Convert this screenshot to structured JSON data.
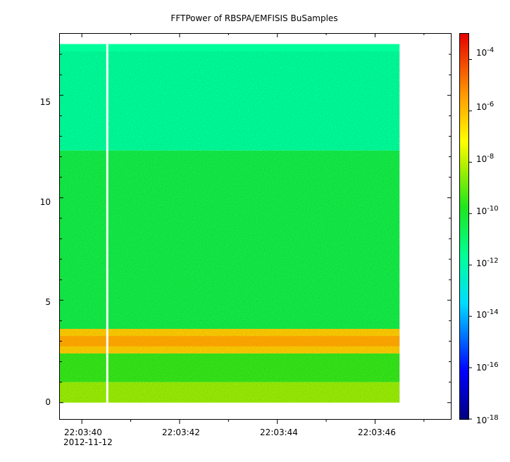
{
  "chart_data": {
    "type": "heatmap",
    "title": "FFTPower of RBSPA/EMFISIS  BuSamples",
    "xlabel": "",
    "ylabel": "",
    "x_tick_labels": [
      "22:03:40",
      "22:03:42",
      "22:03:44",
      "22:03:46"
    ],
    "x_date_label": "2012-11-12",
    "x_tick_seconds": [
      40,
      42,
      44,
      46
    ],
    "x_range_seconds": [
      39.55,
      47.55
    ],
    "data_x_range_seconds": [
      39.55,
      46.5
    ],
    "gap_x_seconds": 40.52,
    "y_ticks": [
      0,
      5,
      10,
      15
    ],
    "y_tick_labels": [
      "0",
      "5",
      "10",
      "15"
    ],
    "y_range": [
      -0.8,
      18.0
    ],
    "data_y_range": [
      0,
      17.5
    ],
    "colorbar": {
      "scale": "log",
      "range": [
        1e-18,
        0.001
      ],
      "tick_labels": [
        {
          "base": "10",
          "exp": "-4",
          "value": -4
        },
        {
          "base": "10",
          "exp": "-6",
          "value": -6
        },
        {
          "base": "10",
          "exp": "-8",
          "value": -8
        },
        {
          "base": "10",
          "exp": "-10",
          "value": -10
        },
        {
          "base": "10",
          "exp": "-12",
          "value": -12
        },
        {
          "base": "10",
          "exp": "-14",
          "value": -14
        },
        {
          "base": "10",
          "exp": "-16",
          "value": -16
        },
        {
          "base": "10",
          "exp": "-18",
          "value": -18
        }
      ]
    },
    "bands": [
      {
        "y_from": 12.3,
        "y_to": 17.5,
        "log_power": -11.7
      },
      {
        "y_from": 3.6,
        "y_to": 12.3,
        "log_power": -10.4
      },
      {
        "y_from": 2.4,
        "y_to": 3.6,
        "log_power": -6.3
      },
      {
        "y_from": 1.0,
        "y_to": 2.4,
        "log_power": -9.5
      },
      {
        "y_from": 0.0,
        "y_to": 1.0,
        "log_power": -8.4
      }
    ],
    "grid": false
  }
}
